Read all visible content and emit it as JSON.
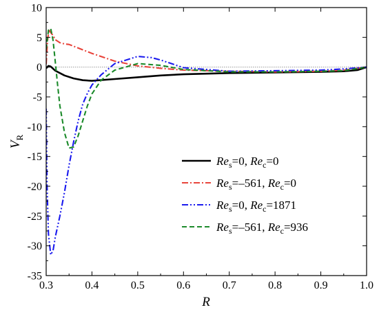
{
  "chart_data": {
    "type": "line",
    "xlabel": "R",
    "ylabel": "V",
    "ylabel_sub": "R",
    "xlim": [
      0.3,
      1.0
    ],
    "ylim": [
      -35,
      10
    ],
    "x_ticks": [
      0.3,
      0.4,
      0.5,
      0.6,
      0.7,
      0.8,
      0.9,
      1.0
    ],
    "x_tick_labels": [
      "0.3",
      "0.4",
      "0.5",
      "0.6",
      "0.7",
      "0.8",
      "0.9",
      "1.0"
    ],
    "y_ticks": [
      10,
      5,
      0,
      -5,
      -10,
      -15,
      -20,
      -25,
      -30,
      -35
    ],
    "y_tick_labels": [
      "10",
      "5",
      "0",
      "-5",
      "-10",
      "-15",
      "-20",
      "-25",
      "-30",
      "-35"
    ],
    "grid": false,
    "reference_line_y": 0,
    "legend_position": "lower-right",
    "series": [
      {
        "legend": {
          "a": "Re",
          "a_sub": "s",
          "b": "=0, ",
          "c": "Re",
          "c_sub": "c",
          "d": "=0"
        },
        "color": "#000000",
        "dash": "solid",
        "x": [
          0.3,
          0.305,
          0.31,
          0.32,
          0.34,
          0.36,
          0.38,
          0.4,
          0.45,
          0.5,
          0.55,
          0.6,
          0.7,
          0.8,
          0.9,
          0.95,
          0.98,
          1.0
        ],
        "y": [
          -0.2,
          0.2,
          0.1,
          -0.6,
          -1.4,
          -1.9,
          -2.2,
          -2.3,
          -2.0,
          -1.7,
          -1.4,
          -1.2,
          -1.0,
          -0.9,
          -0.8,
          -0.7,
          -0.5,
          0.0
        ]
      },
      {
        "legend": {
          "a": "Re",
          "a_sub": "s",
          "b": "=–561, ",
          "c": "Re",
          "c_sub": "c",
          "d": "=0"
        },
        "color": "#e8433a",
        "dash": "dashdot",
        "x": [
          0.3,
          0.303,
          0.306,
          0.31,
          0.315,
          0.32,
          0.33,
          0.34,
          0.35,
          0.37,
          0.4,
          0.45,
          0.5,
          0.55,
          0.6,
          0.7,
          0.8,
          0.9,
          0.95,
          1.0
        ],
        "y": [
          0.5,
          4.5,
          6.3,
          5.8,
          5.3,
          4.6,
          4.1,
          3.9,
          3.8,
          3.2,
          2.3,
          1.0,
          0.2,
          -0.2,
          -0.5,
          -0.7,
          -0.8,
          -0.7,
          -0.5,
          0.0
        ]
      },
      {
        "legend": {
          "a": "Re",
          "a_sub": "s",
          "b": "=0, ",
          "c": "Re",
          "c_sub": "c",
          "d": "=1871"
        },
        "color": "#1a1aee",
        "dash": "dashdotdot",
        "x": [
          0.3,
          0.302,
          0.305,
          0.31,
          0.315,
          0.32,
          0.33,
          0.34,
          0.35,
          0.36,
          0.37,
          0.38,
          0.39,
          0.4,
          0.42,
          0.45,
          0.5,
          0.53,
          0.55,
          0.6,
          0.7,
          0.8,
          0.9,
          0.95,
          1.0
        ],
        "y": [
          -7,
          -20,
          -28,
          -31.5,
          -30.8,
          -28.5,
          -25,
          -21,
          -16.5,
          -12.5,
          -9,
          -6.2,
          -4.4,
          -3,
          -1.3,
          0.6,
          1.8,
          1.6,
          1.2,
          -0.1,
          -0.7,
          -0.6,
          -0.5,
          -0.3,
          0.0
        ]
      },
      {
        "legend": {
          "a": "Re",
          "a_sub": "s",
          "b": "=–561, ",
          "c": "Re",
          "c_sub": "c",
          "d": "=936"
        },
        "color": "#1b8a2a",
        "dash": "dashed",
        "x": [
          0.3,
          0.305,
          0.31,
          0.315,
          0.32,
          0.325,
          0.33,
          0.34,
          0.35,
          0.36,
          0.37,
          0.38,
          0.39,
          0.4,
          0.42,
          0.45,
          0.5,
          0.55,
          0.6,
          0.7,
          0.8,
          0.9,
          0.95,
          1.0
        ],
        "y": [
          3,
          6.2,
          6.5,
          4.5,
          0.8,
          -3,
          -6.5,
          -11,
          -13.6,
          -13.4,
          -11.5,
          -9,
          -6.5,
          -4.5,
          -2.2,
          -0.5,
          0.6,
          0.3,
          -0.4,
          -0.8,
          -0.8,
          -0.7,
          -0.6,
          0.0
        ]
      }
    ]
  }
}
